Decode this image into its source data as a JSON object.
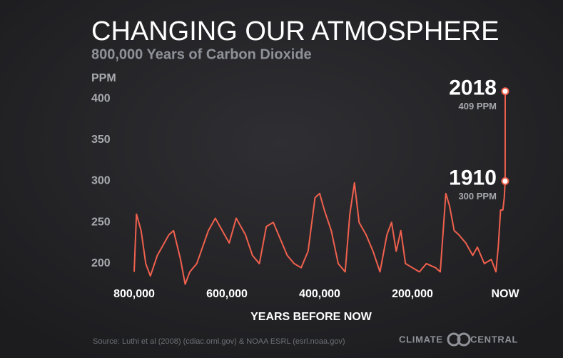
{
  "chart_data": {
    "type": "line",
    "title": "CHANGING OUR ATMOSPHERE",
    "subtitle": "800,000 Years of Carbon Dioxide",
    "y_label": "PPM",
    "x_label": "YEARS BEFORE NOW",
    "source": "Source: Luthi et al (2008) (cdiac.ornl.gov) & NOAA ESRL (esrl.noaa.gov)",
    "logo": "CLIMATE CENTRAL",
    "xlim": [
      800000,
      0
    ],
    "ylim": [
      180,
      420
    ],
    "xticks": [
      {
        "value": 800000,
        "label": "800,000"
      },
      {
        "value": 600000,
        "label": "600,000"
      },
      {
        "value": 400000,
        "label": "400,000"
      },
      {
        "value": 200000,
        "label": "200,000"
      },
      {
        "value": 0,
        "label": "NOW"
      }
    ],
    "yticks": [
      200,
      250,
      300,
      350,
      400
    ],
    "series": [
      {
        "color": "#f0604d",
        "x": [
          800000,
          795000,
          785000,
          775000,
          765000,
          750000,
          740000,
          725000,
          715000,
          700000,
          690000,
          680000,
          665000,
          640000,
          625000,
          610000,
          595000,
          580000,
          560000,
          545000,
          530000,
          515000,
          500000,
          485000,
          470000,
          455000,
          440000,
          425000,
          410000,
          400000,
          390000,
          375000,
          360000,
          345000,
          335000,
          325000,
          315000,
          300000,
          285000,
          270000,
          255000,
          245000,
          235000,
          225000,
          215000,
          200000,
          185000,
          170000,
          150000,
          140000,
          128000,
          120000,
          110000,
          100000,
          85000,
          70000,
          60000,
          45000,
          30000,
          20000,
          15000,
          10000,
          5000,
          2000,
          108,
          0
        ],
        "values": [
          190,
          260,
          240,
          200,
          185,
          210,
          220,
          235,
          240,
          205,
          175,
          190,
          200,
          240,
          255,
          240,
          225,
          255,
          235,
          210,
          200,
          245,
          250,
          230,
          210,
          200,
          195,
          215,
          280,
          285,
          265,
          240,
          200,
          190,
          260,
          298,
          250,
          235,
          215,
          190,
          235,
          250,
          215,
          240,
          200,
          195,
          190,
          200,
          195,
          190,
          285,
          270,
          240,
          235,
          225,
          210,
          220,
          200,
          205,
          190,
          220,
          265,
          265,
          280,
          300,
          409
        ]
      }
    ],
    "annotations": [
      {
        "x": 108,
        "y": 300,
        "label": "1910",
        "value_label": "300 PPM"
      },
      {
        "x": 0,
        "y": 409,
        "label": "2018",
        "value_label": "409 PPM"
      }
    ]
  }
}
